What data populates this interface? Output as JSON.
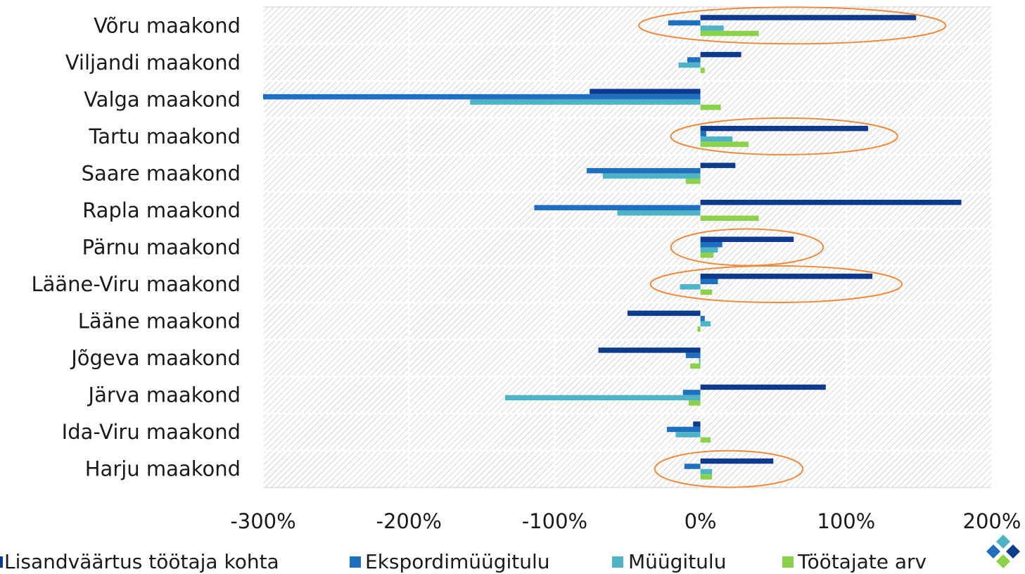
{
  "chart_data": {
    "type": "bar",
    "orientation": "horizontal",
    "categories": [
      "Võru maakond",
      "Viljandi maakond",
      "Valga maakond",
      "Tartu maakond",
      "Saare maakond",
      "Rapla maakond",
      "Pärnu maakond",
      "Lääne-Viru maakond",
      "Lääne maakond",
      "Jõgeva maakond",
      "Järva maakond",
      "Ida-Viru maakond",
      "Harju maakond"
    ],
    "series": [
      {
        "name": "Lisandväärtus töötaja kohta",
        "color": "#0d3a8c",
        "values": [
          148,
          28,
          -76,
          115,
          24,
          179,
          64,
          118,
          -50,
          -70,
          86,
          -5,
          50
        ]
      },
      {
        "name": "Ekspordimüügitulu",
        "color": "#1f6fc0",
        "values": [
          -22,
          -9,
          -300,
          4,
          -78,
          -114,
          15,
          12,
          3,
          -10,
          -12,
          -23,
          -11
        ]
      },
      {
        "name": "Müügitulu",
        "color": "#4fb3c8",
        "values": [
          16,
          -15,
          -158,
          22,
          -67,
          -57,
          12,
          -14,
          7,
          -1,
          -134,
          -17,
          8
        ]
      },
      {
        "name": "Töötajate arv",
        "color": "#8cd14a",
        "values": [
          40,
          3,
          14,
          33,
          -10,
          40,
          9,
          8,
          -2,
          -7,
          -8,
          7,
          8
        ]
      }
    ],
    "x_ticks": [
      "-300%",
      "-200%",
      "-100%",
      "0%",
      "100%",
      "200%"
    ],
    "xlim": [
      -300,
      200
    ],
    "grid": true,
    "legend": "bottom",
    "highlighted_categories": [
      "Võru maakond",
      "Tartu maakond",
      "Pärnu maakond",
      "Lääne-Viru maakond",
      "Harju maakond"
    ],
    "highlight_color": "#f08a3c"
  }
}
